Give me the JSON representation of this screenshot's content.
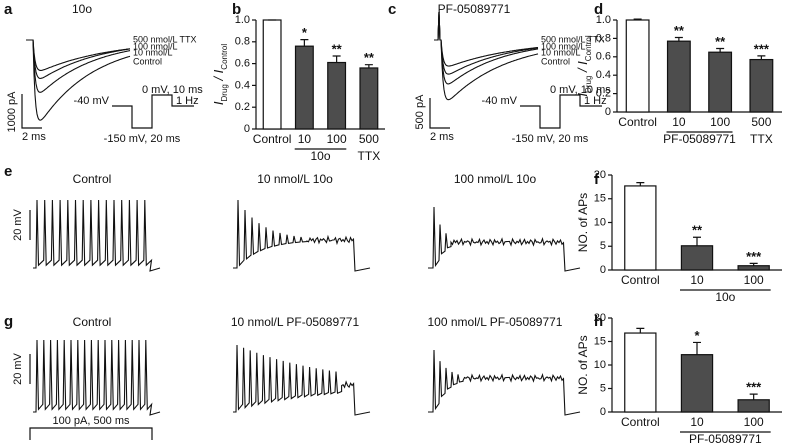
{
  "chart_data": [
    {
      "type": "bar",
      "panel": "b",
      "ylabel": [
        {
          "text": "I",
          "sub": false
        },
        {
          "text": "Drug",
          "sub": true
        },
        {
          "text": " / ",
          "sub": false
        },
        {
          "text": "I",
          "sub": false
        },
        {
          "text": "Control",
          "sub": true
        }
      ],
      "categories": [
        "Control",
        "10",
        "100",
        "500"
      ],
      "group_labels": [
        null,
        "10o",
        null,
        "TTX"
      ],
      "values": [
        1.0,
        0.76,
        0.61,
        0.56
      ],
      "errors": [
        0,
        0.06,
        0.06,
        0.03
      ],
      "annotations": [
        null,
        "*",
        "**",
        "**"
      ],
      "colors": [
        "#ffffff",
        "#4d4d4d",
        "#4d4d4d",
        "#4d4d4d"
      ],
      "ylim": [
        0,
        1.0
      ],
      "yticks": [
        0,
        0.2,
        0.4,
        0.6,
        0.8,
        {
          "value": 1,
          "label": "1.0"
        }
      ]
    },
    {
      "type": "bar",
      "panel": "d",
      "ylabel": [
        {
          "text": "I",
          "sub": false
        },
        {
          "text": "Drug",
          "sub": true
        },
        {
          "text": " / ",
          "sub": false
        },
        {
          "text": "I",
          "sub": false
        },
        {
          "text": "Control",
          "sub": true
        }
      ],
      "categories": [
        "Control",
        "10",
        "100",
        "500"
      ],
      "group_labels": [
        null,
        "PF-05089771",
        null,
        "TTX"
      ],
      "values": [
        1.0,
        0.77,
        0.65,
        0.57
      ],
      "errors": [
        0.01,
        0.04,
        0.04,
        0.04
      ],
      "annotations": [
        null,
        "**",
        "**",
        "***"
      ],
      "colors": [
        "#ffffff",
        "#4d4d4d",
        "#4d4d4d",
        "#4d4d4d"
      ],
      "ylim": [
        0,
        1.0
      ],
      "yticks": [
        0,
        0.2,
        0.4,
        0.6,
        0.8,
        {
          "value": 1,
          "label": "1.0"
        }
      ]
    },
    {
      "type": "bar",
      "panel": "f",
      "ylabel": "NO. of APs",
      "categories": [
        "Control",
        "10",
        "100"
      ],
      "group_labels": [
        null,
        "10o",
        null
      ],
      "values": [
        17.7,
        5.1,
        0.9
      ],
      "errors": [
        0.7,
        1.8,
        0.5
      ],
      "annotations": [
        null,
        "**",
        "***"
      ],
      "colors": [
        "#ffffff",
        "#4d4d4d",
        "#4d4d4d"
      ],
      "ylim": [
        0,
        20
      ],
      "yticks": [
        0,
        5,
        10,
        15,
        20
      ]
    },
    {
      "type": "bar",
      "panel": "h",
      "ylabel": "NO. of APs",
      "categories": [
        "Control",
        "10",
        "100"
      ],
      "group_labels": [
        null,
        "PF-05089771",
        null
      ],
      "values": [
        16.8,
        12.2,
        2.6
      ],
      "errors": [
        1.0,
        2.6,
        1.2
      ],
      "annotations": [
        null,
        "*",
        "***"
      ],
      "colors": [
        "#ffffff",
        "#4d4d4d",
        "#4d4d4d"
      ],
      "ylim": [
        0,
        20
      ],
      "yticks": [
        0,
        5,
        10,
        15,
        20
      ]
    }
  ],
  "traces": {
    "a": {
      "panel": "a",
      "title": "10o",
      "labels": [
        "500 nmol/L TTX",
        "100 nmol/L",
        "10 nmol/L",
        "Control"
      ],
      "yscale": "1000 pA",
      "xscale": "2 ms",
      "hold": "-40 mV",
      "step": "0 mV, 10 ms",
      "freq": "1 Hz",
      "pre": "-150 mV, 20 ms"
    },
    "c": {
      "panel": "c",
      "title": "PF-05089771",
      "labels": [
        "500 nmol/L TTX",
        "100 nmol/L",
        "10 nmol/L",
        "Control"
      ],
      "yscale": "500 pA",
      "xscale": "2 ms",
      "hold": "-40 mV",
      "step": "0 mV, 10 ms",
      "freq": "1 Hz",
      "pre": "-150 mV, 20 ms"
    },
    "e": {
      "panel": "e",
      "titles": [
        "Control",
        "10 nmol/L 10o",
        "100 nmol/L 10o"
      ],
      "yscale": "20 mV"
    },
    "g": {
      "panel": "g",
      "titles": [
        "Control",
        "10 nmol/L PF-05089771",
        "100 nmol/L PF-05089771"
      ],
      "yscale": "20 mV",
      "stimulus": "100 pA, 500 ms"
    }
  }
}
